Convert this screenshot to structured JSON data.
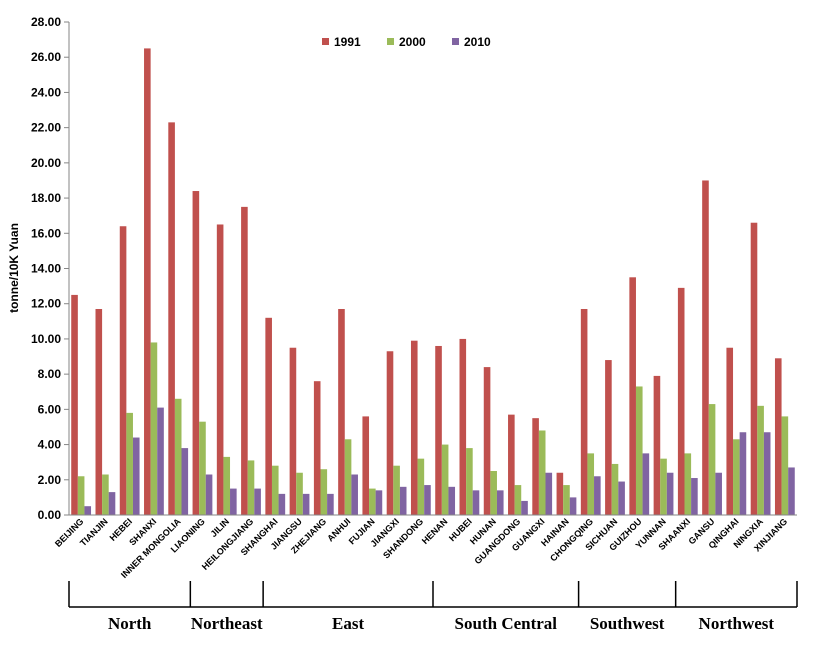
{
  "chart_data": {
    "type": "bar",
    "ylabel": "tonne/10K Yuan",
    "ylim": [
      0,
      28
    ],
    "yticks": [
      "0.00",
      "2.00",
      "4.00",
      "6.00",
      "8.00",
      "10.00",
      "12.00",
      "14.00",
      "16.00",
      "18.00",
      "20.00",
      "22.00",
      "24.00",
      "26.00",
      "28.00"
    ],
    "categories": [
      "BEIJING",
      "TIANJIN",
      "HEBEI",
      "SHANXI",
      "INNER MONGOLIA",
      "LIAONING",
      "JILIN",
      "HEILONGJIANG",
      "SHANGHAI",
      "JIANGSU",
      "ZHEJIANG",
      "ANHUI",
      "FUJIAN",
      "JIANGXI",
      "SHANDONG",
      "HENAN",
      "HUBEI",
      "HUNAN",
      "GUANGDONG",
      "GUANGXI",
      "HAINAN",
      "CHONGQING",
      "SICHUAN",
      "GUIZHOU",
      "YUNNAN",
      "SHAANXI",
      "GANSU",
      "QINGHAI",
      "NINGXIA",
      "XINJIANG"
    ],
    "series": [
      {
        "name": "1991",
        "color": "#C0504D",
        "values": [
          12.5,
          11.7,
          16.4,
          26.5,
          22.3,
          18.4,
          16.5,
          17.5,
          11.2,
          9.5,
          7.6,
          11.7,
          5.6,
          9.3,
          9.9,
          9.6,
          10.0,
          8.4,
          5.7,
          5.5,
          2.4,
          11.7,
          8.8,
          13.5,
          7.9,
          12.9,
          19.0,
          9.5,
          16.6,
          8.9
        ]
      },
      {
        "name": "2000",
        "color": "#9BBB59",
        "values": [
          2.2,
          2.3,
          5.8,
          9.8,
          6.6,
          5.3,
          3.3,
          3.1,
          2.8,
          2.4,
          2.6,
          4.3,
          1.5,
          2.8,
          3.2,
          4.0,
          3.8,
          2.5,
          1.7,
          4.8,
          1.7,
          3.5,
          2.9,
          7.3,
          3.2,
          3.5,
          6.3,
          4.3,
          6.2,
          5.6
        ]
      },
      {
        "name": "2010",
        "color": "#8064A2",
        "values": [
          0.5,
          1.3,
          4.4,
          6.1,
          3.8,
          2.3,
          1.5,
          1.5,
          1.2,
          1.2,
          1.2,
          2.3,
          1.4,
          1.6,
          1.7,
          1.6,
          1.4,
          1.4,
          0.8,
          2.4,
          1.0,
          2.2,
          1.9,
          3.5,
          2.4,
          2.1,
          2.4,
          4.7,
          4.7,
          2.7
        ]
      }
    ],
    "regions": [
      {
        "name": "North",
        "start": 0,
        "end": 4
      },
      {
        "name": "Northeast",
        "start": 5,
        "end": 7
      },
      {
        "name": "East",
        "start": 8,
        "end": 14
      },
      {
        "name": "South Central",
        "start": 15,
        "end": 20
      },
      {
        "name": "Southwest",
        "start": 21,
        "end": 24
      },
      {
        "name": "Northwest",
        "start": 25,
        "end": 29
      }
    ],
    "legend_position": "top-center"
  }
}
